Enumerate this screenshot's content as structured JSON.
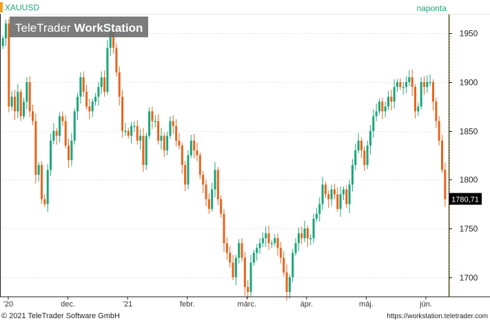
{
  "header": {
    "symbol": "XAUUSD",
    "interval": "naponta",
    "watermark_brand": "TeleTrader",
    "watermark_product": "WorkStation"
  },
  "footer": {
    "copyright": "© 2021 TeleTrader Software GmbH",
    "url": "https://workstation.teletrader.com"
  },
  "colors": {
    "up": "#1aa67a",
    "down": "#e8641e",
    "symbol_text": "#1aa67a",
    "accent_bar": "#f0a020",
    "last_price_bg": "#000000",
    "last_price_text": "#ffffff",
    "grid": "#d8d8d8"
  },
  "chart_data": {
    "type": "candlestick",
    "last_price_label": "1780,71",
    "ylim": [
      1680,
      1970
    ],
    "yticks": [
      1700,
      1750,
      1800,
      1850,
      1900,
      1950
    ],
    "x_tick_labels": [
      "'20",
      "dec.",
      "'21",
      "febr.",
      "márc.",
      "ápr.",
      "máj.",
      "jún."
    ],
    "grid": true,
    "close": [
      1945,
      1960,
      1875,
      1885,
      1870,
      1890,
      1865,
      1880,
      1900,
      1870,
      1860,
      1805,
      1815,
      1780,
      1775,
      1810,
      1840,
      1850,
      1845,
      1865,
      1860,
      1835,
      1820,
      1840,
      1870,
      1885,
      1905,
      1890,
      1875,
      1870,
      1880,
      1885,
      1895,
      1905,
      1890,
      1935,
      1955,
      1935,
      1910,
      1885,
      1850,
      1850,
      1845,
      1855,
      1855,
      1840,
      1845,
      1815,
      1845,
      1870,
      1860,
      1860,
      1840,
      1845,
      1830,
      1845,
      1860,
      1855,
      1840,
      1835,
      1815,
      1795,
      1825,
      1840,
      1830,
      1825,
      1805,
      1795,
      1780,
      1770,
      1790,
      1810,
      1780,
      1765,
      1735,
      1725,
      1715,
      1700,
      1720,
      1735,
      1720,
      1690,
      1685,
      1715,
      1725,
      1730,
      1735,
      1740,
      1745,
      1735,
      1735,
      1740,
      1730,
      1720,
      1705,
      1685,
      1700,
      1725,
      1735,
      1745,
      1740,
      1750,
      1740,
      1740,
      1760,
      1765,
      1775,
      1795,
      1785,
      1780,
      1790,
      1785,
      1770,
      1785,
      1790,
      1775,
      1795,
      1815,
      1830,
      1840,
      1830,
      1815,
      1835,
      1850,
      1865,
      1870,
      1880,
      1870,
      1875,
      1885,
      1880,
      1895,
      1900,
      1895,
      1895,
      1900,
      1905,
      1895,
      1870,
      1875,
      1900,
      1895,
      1900,
      1900,
      1880,
      1860,
      1840,
      1810,
      1780
    ]
  }
}
